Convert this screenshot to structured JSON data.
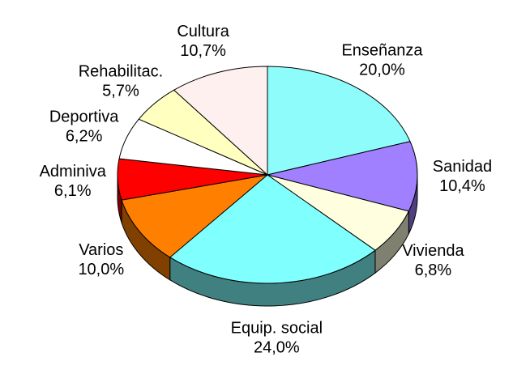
{
  "chart_data": {
    "type": "pie",
    "categories": [
      "Enseñanza",
      "Sanidad",
      "Vivienda",
      "Equip. social",
      "Varios",
      "Adminiva",
      "Deportiva",
      "Rehabilitac.",
      "Cultura"
    ],
    "values": [
      20.0,
      10.4,
      6.8,
      24.0,
      10.0,
      6.1,
      6.2,
      5.7,
      10.7
    ],
    "value_labels": [
      "20,0%",
      "10,4%",
      "6,8%",
      "24,0%",
      "10,0%",
      "6,1%",
      "6,2%",
      "5,7%",
      "10,7%"
    ],
    "colors": [
      "#8ffcfc",
      "#a080ff",
      "#ffffe0",
      "#80ffff",
      "#ff8000",
      "#ff0000",
      "#ffffff",
      "#ffffc0",
      "#fff0f0"
    ]
  }
}
